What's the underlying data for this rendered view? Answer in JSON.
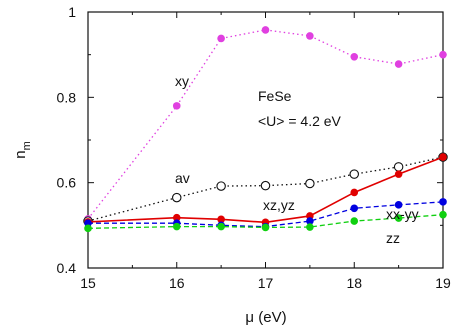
{
  "chart_data": {
    "type": "line",
    "xlabel": "μ (eV)",
    "ylabel_main": "n",
    "ylabel_sub": "m",
    "xlim": [
      15,
      19
    ],
    "ylim": [
      0.4,
      1.0
    ],
    "xticks": [
      15,
      16,
      17,
      18,
      19
    ],
    "yticks": [
      0.4,
      0.6,
      0.8,
      1.0
    ],
    "ytick_labels": [
      "0.4",
      "0.6",
      "0.8",
      "1"
    ],
    "grid": false,
    "annotations": [
      "FeSe",
      "<U> = 4.2 eV"
    ],
    "series": [
      {
        "name": "xy",
        "color": "#e040e0",
        "line": "dotted",
        "marker": "filled",
        "x": [
          15,
          16,
          16.5,
          17,
          17.5,
          18,
          18.5,
          19
        ],
        "y": [
          0.515,
          0.78,
          0.938,
          0.958,
          0.944,
          0.895,
          0.878,
          0.9
        ]
      },
      {
        "name": "av",
        "color": "#111111",
        "line": "dotted",
        "marker": "open",
        "x": [
          15,
          16,
          16.5,
          17,
          17.5,
          18,
          18.5,
          19
        ],
        "y": [
          0.51,
          0.565,
          0.592,
          0.593,
          0.598,
          0.62,
          0.637,
          0.66
        ]
      },
      {
        "name": "xx-yy",
        "color": "#e00000",
        "line": "solid",
        "marker": "filled",
        "x": [
          15,
          16,
          16.5,
          17,
          17.5,
          18,
          18.5,
          19
        ],
        "y": [
          0.508,
          0.518,
          0.514,
          0.507,
          0.522,
          0.577,
          0.62,
          0.66
        ]
      },
      {
        "name": "xz,yz",
        "color": "#0000e0",
        "line": "dashed",
        "marker": "filled",
        "x": [
          15,
          16,
          16.5,
          17,
          17.5,
          18,
          18.5,
          19
        ],
        "y": [
          0.505,
          0.505,
          0.5,
          0.497,
          0.51,
          0.54,
          0.548,
          0.555
        ]
      },
      {
        "name": "zz",
        "color": "#10d010",
        "line": "dashed",
        "marker": "filled",
        "x": [
          15,
          16,
          16.5,
          17,
          17.5,
          18,
          18.5,
          19
        ],
        "y": [
          0.493,
          0.497,
          0.497,
          0.495,
          0.496,
          0.51,
          0.517,
          0.525
        ]
      }
    ]
  }
}
